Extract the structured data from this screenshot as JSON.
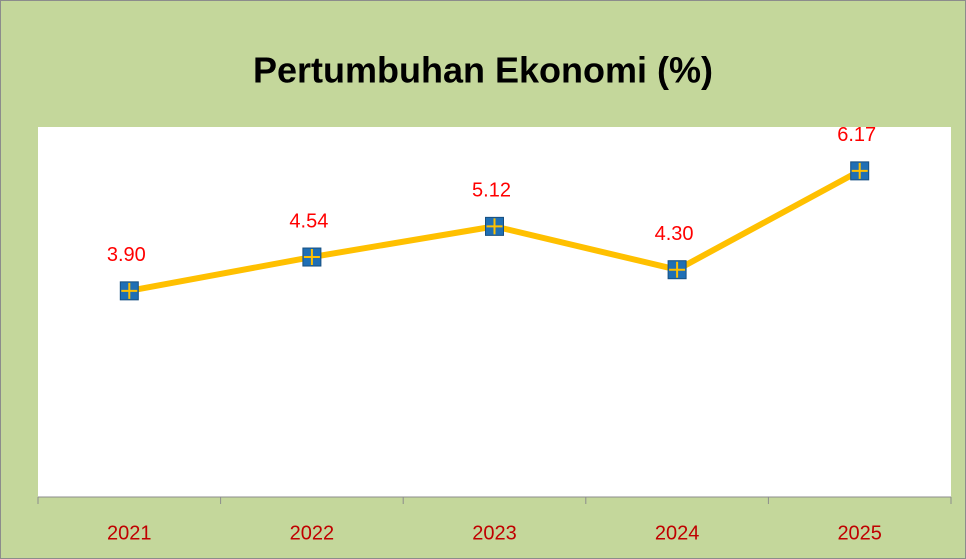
{
  "chart_data": {
    "type": "line",
    "title": "Pertumbuhan Ekonomi (%)",
    "categories": [
      "2021",
      "2022",
      "2023",
      "2024",
      "2025"
    ],
    "series": [
      {
        "color": "#ffc000",
        "marker_color": "#1f6fb5",
        "label_color": "#ff0000",
        "values": [
          3.9,
          4.54,
          5.12,
          4.3,
          6.17
        ],
        "value_labels": [
          "3.90",
          "4.54",
          "5.12",
          "4.30",
          "6.17"
        ]
      }
    ],
    "ylim": [
      0,
      7
    ]
  }
}
